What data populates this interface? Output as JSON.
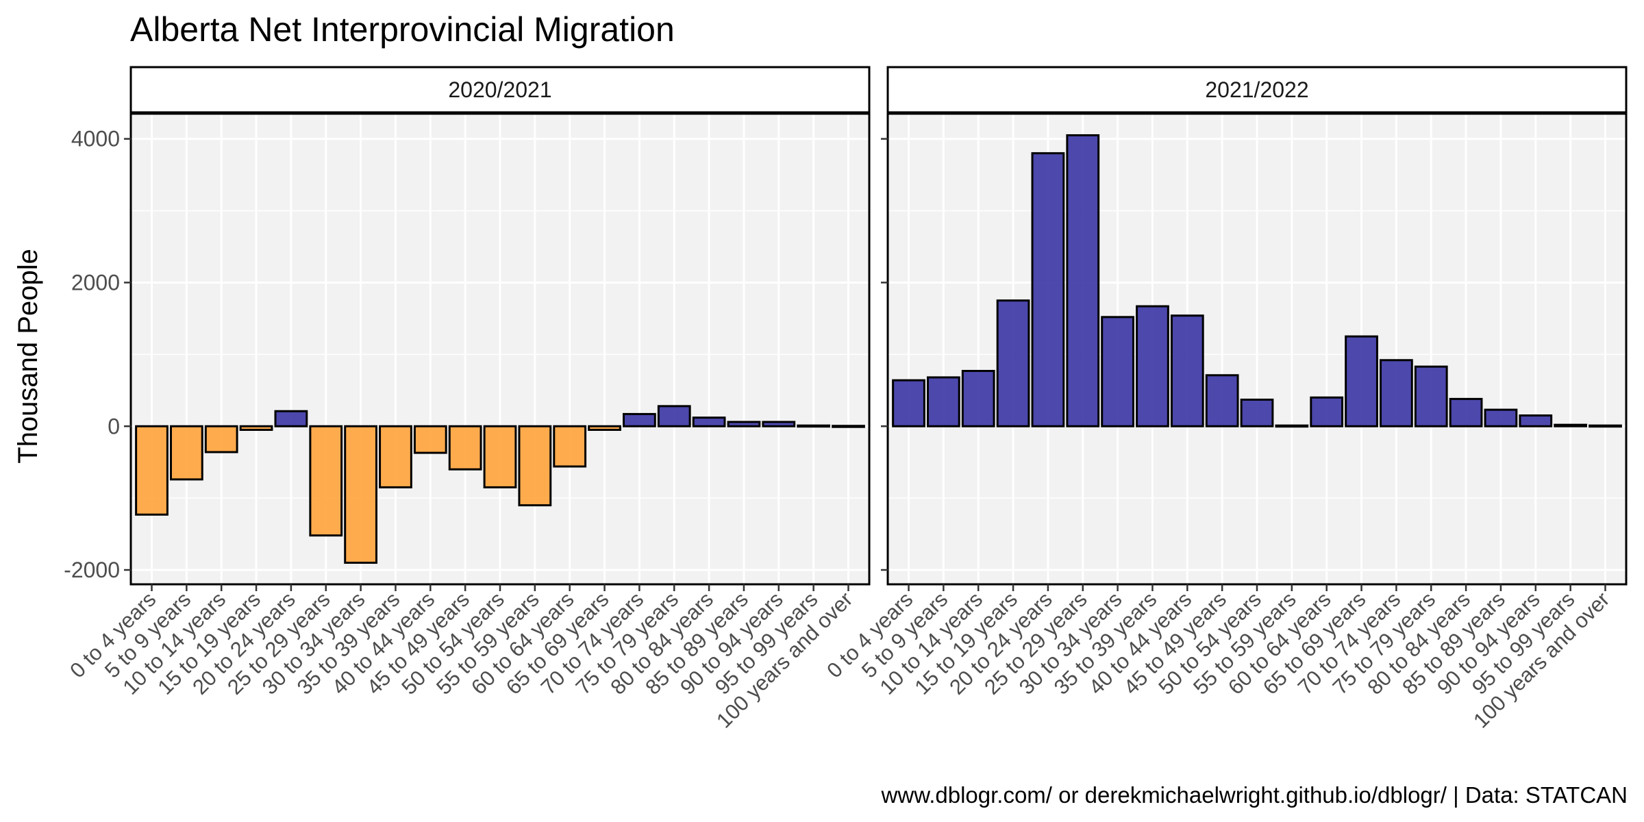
{
  "chart_data": {
    "type": "bar",
    "title": "Alberta Net Interprovincial Migration",
    "ylabel": "Thousand People",
    "xlabel": "",
    "caption": "www.dblogr.com/ or derekmichaelwright.github.io/dblogr/ | Data: STATCAN",
    "ylim": [
      -2200,
      4350
    ],
    "yticks": [
      -2000,
      0,
      2000,
      4000
    ],
    "ytick_labels": [
      "-2000",
      "0",
      "2000",
      "4000"
    ],
    "grid": true,
    "legend": "none",
    "categories": [
      "0 to 4 years",
      "5 to 9 years",
      "10 to 14 years",
      "15 to 19 years",
      "20 to 24 years",
      "25 to 29 years",
      "30 to 34 years",
      "35 to 39 years",
      "40 to 44 years",
      "45 to 49 years",
      "50 to 54 years",
      "55 to 59 years",
      "60 to 64 years",
      "65 to 69 years",
      "70 to 74 years",
      "75 to 79 years",
      "80 to 84 years",
      "85 to 89 years",
      "90 to 94 years",
      "95 to 99 years",
      "100 years and over"
    ],
    "colors": {
      "positive": "#3E3AA6",
      "negative": "#FFA53F",
      "panel_bg": "#F2F2F2",
      "grid": "#FFFFFF",
      "border": "#000000"
    },
    "panels": [
      {
        "label": "2020/2021",
        "values": [
          -1230,
          -740,
          -360,
          -50,
          210,
          -1520,
          -1900,
          -850,
          -370,
          -600,
          -850,
          -1100,
          -560,
          -50,
          170,
          280,
          120,
          60,
          60,
          10,
          5
        ]
      },
      {
        "label": "2021/2022",
        "values": [
          640,
          680,
          770,
          1750,
          3800,
          4050,
          1520,
          1670,
          1540,
          710,
          370,
          10,
          400,
          1250,
          920,
          830,
          380,
          230,
          150,
          20,
          10
        ]
      }
    ]
  }
}
